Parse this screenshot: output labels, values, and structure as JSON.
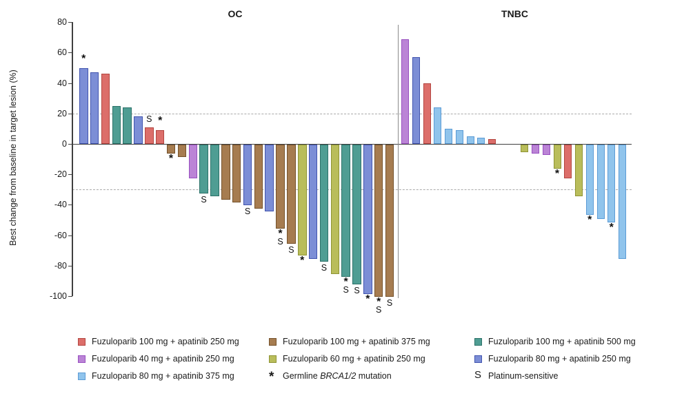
{
  "figure": {
    "ylabel": "Best change from baseline in target lesion (%)"
  },
  "colors": {
    "fz100_ap250": {
      "fill": "#dc6e6a",
      "stroke": "#b34540"
    },
    "fz100_ap375": {
      "fill": "#a67c50",
      "stroke": "#74512a"
    },
    "fz100_ap500": {
      "fill": "#4f9d93",
      "stroke": "#2b7168"
    },
    "fz40_ap250": {
      "fill": "#bb84d6",
      "stroke": "#984fc0"
    },
    "fz60_ap250": {
      "fill": "#b9bd5b",
      "stroke": "#8e9434"
    },
    "fz80_ap250": {
      "fill": "#7c8ed6",
      "stroke": "#4053ae"
    },
    "fz80_ap375": {
      "fill": "#90c4ec",
      "stroke": "#5b9bd5"
    }
  },
  "chart_data": {
    "type": "bar",
    "title": "",
    "ylabel": "Best change from baseline in target lesion (%)",
    "ylim": [
      -100,
      80
    ],
    "yticks": [
      80,
      60,
      40,
      20,
      0,
      -20,
      -40,
      -60,
      -80,
      -100
    ],
    "reference_lines": [
      20,
      -30
    ],
    "grid": "dashed horizontal reference lines at +20 and -30 only",
    "legend_position": "bottom",
    "annotations_meaning": {
      "*": "Germline BRCA1/2 mutation",
      "S": "Platinum-sensitive"
    },
    "panels": [
      {
        "title": "OC",
        "bars": [
          {
            "v": 50,
            "c": "fz80_ap250",
            "m": "*"
          },
          {
            "v": 47,
            "c": "fz80_ap250",
            "m": ""
          },
          {
            "v": 46,
            "c": "fz100_ap250",
            "m": ""
          },
          {
            "v": 25,
            "c": "fz100_ap500",
            "m": ""
          },
          {
            "v": 24,
            "c": "fz100_ap500",
            "m": ""
          },
          {
            "v": 18,
            "c": "fz80_ap250",
            "m": ""
          },
          {
            "v": 11,
            "c": "fz100_ap250",
            "m": "S"
          },
          {
            "v": 9,
            "c": "fz100_ap250",
            "m": "*"
          },
          {
            "v": -6,
            "c": "fz100_ap375",
            "m": "*"
          },
          {
            "v": -8,
            "c": "fz100_ap375",
            "m": ""
          },
          {
            "v": -22,
            "c": "fz40_ap250",
            "m": ""
          },
          {
            "v": -32,
            "c": "fz100_ap500",
            "m": "S"
          },
          {
            "v": -34,
            "c": "fz100_ap500",
            "m": ""
          },
          {
            "v": -36,
            "c": "fz100_ap375",
            "m": ""
          },
          {
            "v": -38,
            "c": "fz100_ap375",
            "m": ""
          },
          {
            "v": -40,
            "c": "fz80_ap250",
            "m": "S"
          },
          {
            "v": -42,
            "c": "fz100_ap375",
            "m": ""
          },
          {
            "v": -44,
            "c": "fz80_ap250",
            "m": ""
          },
          {
            "v": -55,
            "c": "fz100_ap375",
            "m": "*S"
          },
          {
            "v": -65,
            "c": "fz100_ap375",
            "m": "S"
          },
          {
            "v": -73,
            "c": "fz60_ap250",
            "m": "*"
          },
          {
            "v": -75,
            "c": "fz80_ap250",
            "m": ""
          },
          {
            "v": -77,
            "c": "fz100_ap500",
            "m": "S"
          },
          {
            "v": -85,
            "c": "fz60_ap250",
            "m": ""
          },
          {
            "v": -87,
            "c": "fz100_ap500",
            "m": "*S"
          },
          {
            "v": -92,
            "c": "fz100_ap500",
            "m": "S"
          },
          {
            "v": -98,
            "c": "fz80_ap250",
            "m": "*"
          },
          {
            "v": -100,
            "c": "fz100_ap375",
            "m": "*S"
          },
          {
            "v": -100,
            "c": "fz100_ap375",
            "m": "S"
          }
        ]
      },
      {
        "title": "TNBC",
        "bars": [
          {
            "v": 69,
            "c": "fz40_ap250",
            "m": ""
          },
          {
            "v": 57,
            "c": "fz80_ap250",
            "m": ""
          },
          {
            "v": 40,
            "c": "fz100_ap250",
            "m": ""
          },
          {
            "v": 24,
            "c": "fz80_ap375",
            "m": ""
          },
          {
            "v": 10,
            "c": "fz80_ap375",
            "m": ""
          },
          {
            "v": 9,
            "c": "fz80_ap375",
            "m": ""
          },
          {
            "v": 5,
            "c": "fz80_ap375",
            "m": ""
          },
          {
            "v": 4,
            "c": "fz80_ap375",
            "m": ""
          },
          {
            "v": 3,
            "c": "fz100_ap250",
            "m": ""
          },
          {
            "v": null,
            "c": null,
            "m": ""
          },
          {
            "v": null,
            "c": null,
            "m": ""
          },
          {
            "v": -5,
            "c": "fz60_ap250",
            "m": ""
          },
          {
            "v": -6,
            "c": "fz40_ap250",
            "m": ""
          },
          {
            "v": -7,
            "c": "fz40_ap250",
            "m": ""
          },
          {
            "v": -16,
            "c": "fz60_ap250",
            "m": "*"
          },
          {
            "v": -22,
            "c": "fz100_ap250",
            "m": ""
          },
          {
            "v": -34,
            "c": "fz60_ap250",
            "m": ""
          },
          {
            "v": -46,
            "c": "fz80_ap375",
            "m": "*"
          },
          {
            "v": -49,
            "c": "fz80_ap375",
            "m": ""
          },
          {
            "v": -51,
            "c": "fz80_ap375",
            "m": "*"
          },
          {
            "v": -75,
            "c": "fz80_ap375",
            "m": ""
          }
        ]
      }
    ]
  },
  "legend": {
    "items": [
      {
        "key": "fz100_ap250",
        "label": "Fuzuloparib 100 mg + apatinib 250 mg"
      },
      {
        "key": "fz100_ap375",
        "label": "Fuzuloparib 100 mg + apatinib 375 mg"
      },
      {
        "key": "fz100_ap500",
        "label": "Fuzuloparib 100 mg + apatinib 500 mg"
      },
      {
        "key": "fz40_ap250",
        "label": "Fuzuloparib 40 mg + apatinib 250 mg"
      },
      {
        "key": "fz60_ap250",
        "label": "Fuzuloparib 60 mg + apatinib 250 mg"
      },
      {
        "key": "fz80_ap250",
        "label": "Fuzuloparib 80 mg + apatinib 250 mg"
      },
      {
        "key": "fz80_ap375",
        "label": "Fuzuloparib 80 mg + apatinib 375 mg"
      }
    ],
    "marker_items": [
      {
        "symbol": "*",
        "label_prefix": "Germline ",
        "label_italic": "BRCA1/2",
        "label_suffix": " mutation"
      },
      {
        "symbol": "S",
        "label": "Platinum-sensitive"
      }
    ]
  }
}
